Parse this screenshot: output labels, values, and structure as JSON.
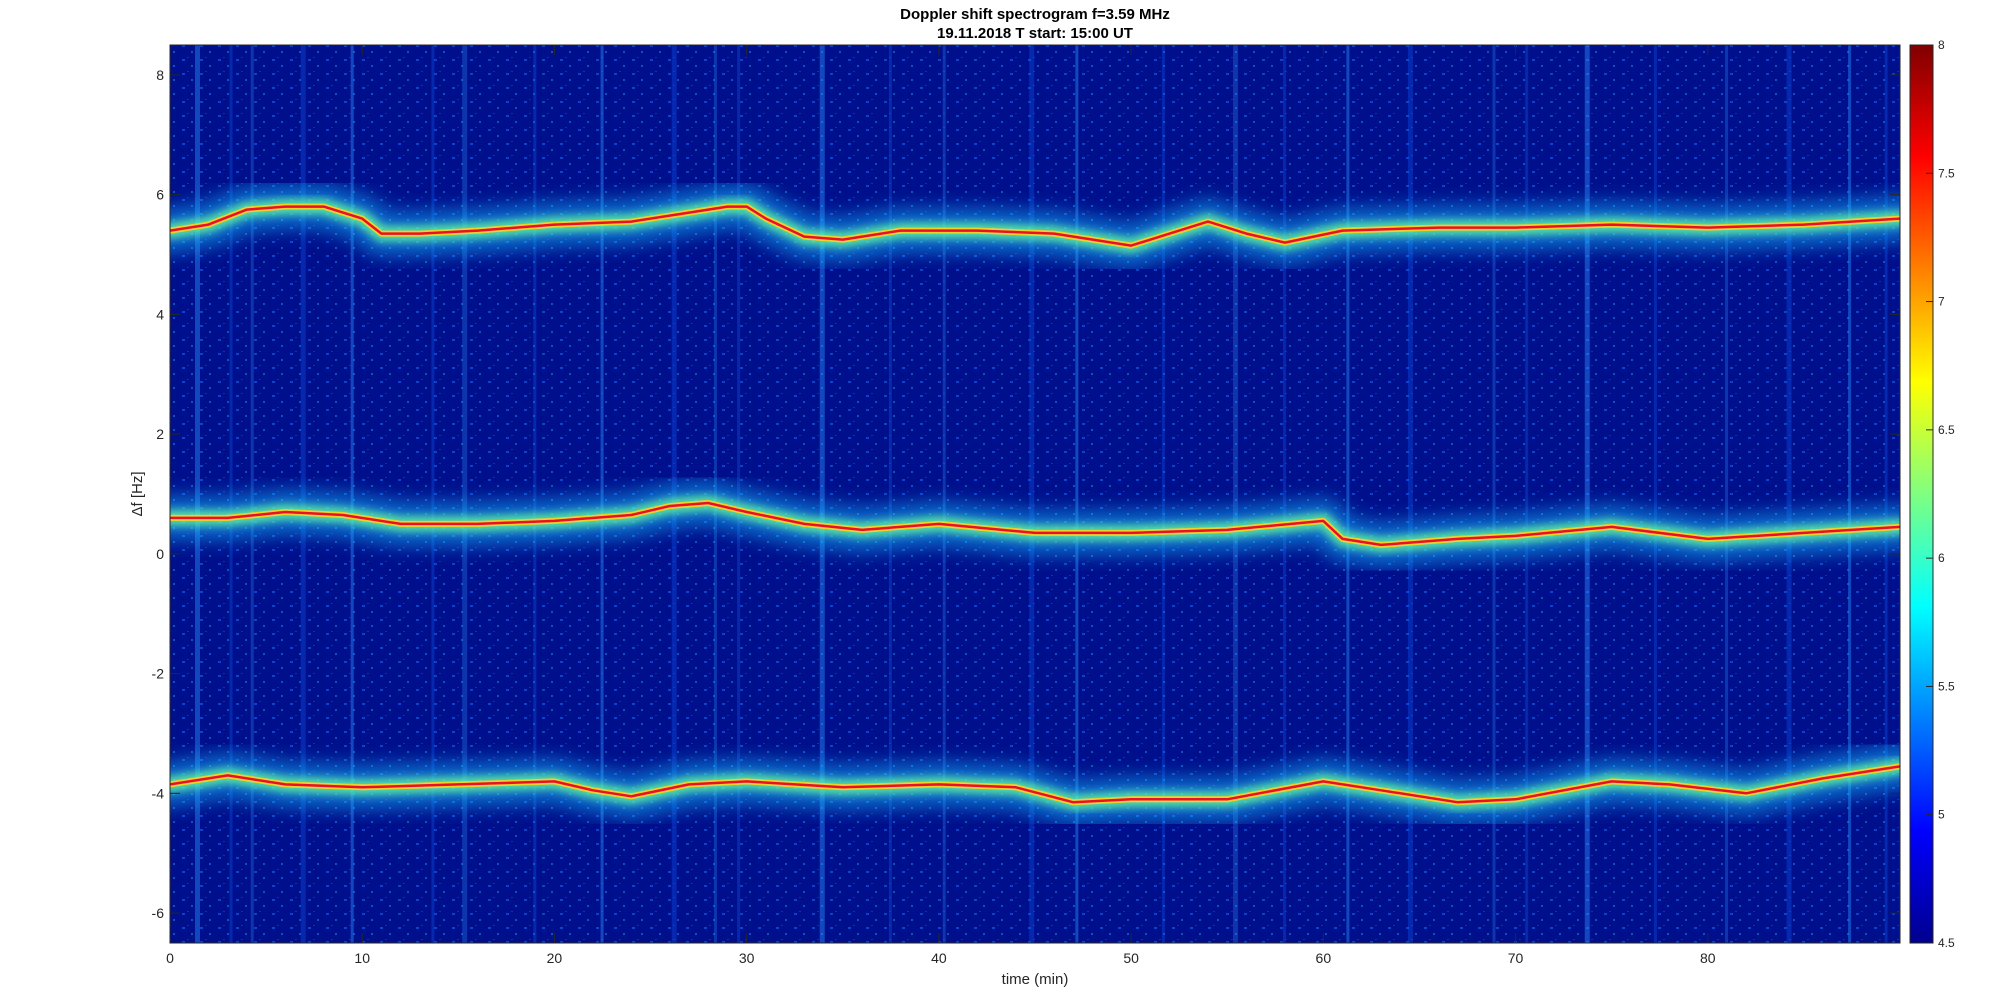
{
  "chart_data": {
    "type": "heatmap",
    "title": "Doppler shift spectrogram f=3.59 MHz",
    "subtitle": "19.11.2018   T start: 15:00 UT",
    "xlabel": "time (min)",
    "ylabel": "Δf [Hz]",
    "xlim": [
      0,
      90
    ],
    "ylim": [
      -6.5,
      8.5
    ],
    "x_ticks": [
      0,
      10,
      20,
      30,
      40,
      50,
      60,
      70,
      80
    ],
    "y_ticks": [
      8,
      6,
      4,
      2,
      0,
      -2,
      -4,
      -6
    ],
    "colorbar": {
      "range": [
        4.5,
        8
      ],
      "ticks": [
        8,
        7.5,
        7,
        6.5,
        6,
        5.5,
        5,
        4.5
      ],
      "colormap": "jet"
    },
    "grid": false,
    "series": [
      {
        "x": [
          0,
          2,
          4,
          6,
          8,
          10,
          11,
          13,
          16,
          20,
          24,
          27,
          29,
          30,
          31,
          33,
          35,
          38,
          42,
          46,
          50,
          52,
          54,
          56,
          58,
          61,
          66,
          70,
          75,
          80,
          85,
          90
        ],
        "y": [
          5.4,
          5.5,
          5.75,
          5.8,
          5.8,
          5.6,
          5.35,
          5.35,
          5.4,
          5.5,
          5.55,
          5.7,
          5.8,
          5.8,
          5.6,
          5.3,
          5.25,
          5.4,
          5.4,
          5.35,
          5.15,
          5.35,
          5.55,
          5.35,
          5.2,
          5.4,
          5.45,
          5.45,
          5.5,
          5.45,
          5.5,
          5.6
        ]
      },
      {
        "x": [
          0,
          3,
          6,
          9,
          12,
          16,
          20,
          24,
          26,
          28,
          30,
          33,
          36,
          40,
          45,
          50,
          55,
          60,
          61,
          63,
          67,
          70,
          75,
          80,
          85,
          90
        ],
        "y": [
          0.6,
          0.6,
          0.7,
          0.65,
          0.5,
          0.5,
          0.55,
          0.65,
          0.8,
          0.85,
          0.7,
          0.5,
          0.4,
          0.5,
          0.35,
          0.35,
          0.4,
          0.55,
          0.25,
          0.15,
          0.25,
          0.3,
          0.45,
          0.25,
          0.35,
          0.45
        ]
      },
      {
        "x": [
          0,
          3,
          6,
          10,
          15,
          20,
          22,
          24,
          27,
          30,
          35,
          40,
          44,
          47,
          50,
          55,
          60,
          63,
          67,
          70,
          75,
          78,
          82,
          86,
          90
        ],
        "y": [
          -3.85,
          -3.7,
          -3.85,
          -3.9,
          -3.85,
          -3.8,
          -3.95,
          -4.05,
          -3.85,
          -3.8,
          -3.9,
          -3.85,
          -3.9,
          -4.15,
          -4.1,
          -4.1,
          -3.8,
          -3.95,
          -4.15,
          -4.1,
          -3.8,
          -3.85,
          -4.0,
          -3.75,
          -3.55
        ]
      }
    ]
  }
}
